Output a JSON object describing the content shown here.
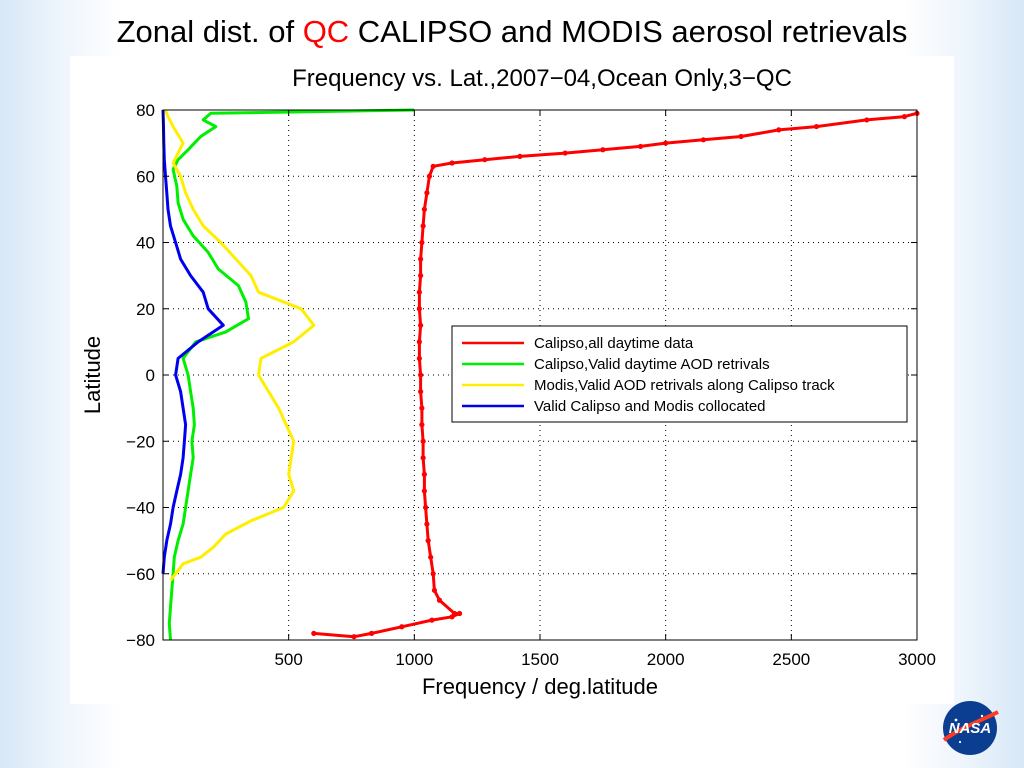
{
  "slide": {
    "title_prefix": "Zonal dist. of ",
    "title_accent": "QC",
    "title_suffix": " CALIPSO and MODIS aerosol retrievals",
    "accent_color": "#ff0000"
  },
  "logo": {
    "name": "nasa-logo",
    "text": "NASA"
  },
  "chart_data": {
    "type": "line",
    "title": "Frequency vs. Lat.,2007−04,Ocean Only,3−QC",
    "xlabel": "Frequency / deg.latitude",
    "ylabel": "Latitude",
    "xlim": [
      0,
      3000
    ],
    "ylim": [
      -80,
      80
    ],
    "xticks": [
      500,
      1000,
      1500,
      2000,
      2500,
      3000
    ],
    "yticks": [
      -80,
      -60,
      -40,
      -20,
      0,
      20,
      40,
      60,
      80
    ],
    "ytick_labels": [
      "−80",
      "−60",
      "−40",
      "−20",
      "0",
      "20",
      "40",
      "60",
      "80"
    ],
    "grid": true,
    "legend_position": "center-right",
    "series": [
      {
        "name": "Calipso,all daytime data",
        "color": "#ff0000",
        "markers": true,
        "points": [
          [
            600,
            -78
          ],
          [
            760,
            -79
          ],
          [
            830,
            -78
          ],
          [
            950,
            -76
          ],
          [
            1070,
            -74
          ],
          [
            1150,
            -73
          ],
          [
            1180,
            -72
          ],
          [
            1160,
            -72
          ],
          [
            1100,
            -68
          ],
          [
            1080,
            -65
          ],
          [
            1075,
            -60
          ],
          [
            1065,
            -55
          ],
          [
            1055,
            -50
          ],
          [
            1050,
            -45
          ],
          [
            1045,
            -40
          ],
          [
            1040,
            -35
          ],
          [
            1040,
            -30
          ],
          [
            1035,
            -25
          ],
          [
            1035,
            -20
          ],
          [
            1030,
            -15
          ],
          [
            1030,
            -10
          ],
          [
            1025,
            -5
          ],
          [
            1025,
            0
          ],
          [
            1020,
            5
          ],
          [
            1020,
            10
          ],
          [
            1025,
            15
          ],
          [
            1020,
            20
          ],
          [
            1020,
            25
          ],
          [
            1025,
            30
          ],
          [
            1025,
            35
          ],
          [
            1030,
            40
          ],
          [
            1035,
            45
          ],
          [
            1040,
            50
          ],
          [
            1050,
            55
          ],
          [
            1060,
            60
          ],
          [
            1075,
            63
          ],
          [
            1150,
            64
          ],
          [
            1280,
            65
          ],
          [
            1420,
            66
          ],
          [
            1600,
            67
          ],
          [
            1750,
            68
          ],
          [
            1900,
            69
          ],
          [
            2000,
            70
          ],
          [
            2150,
            71
          ],
          [
            2300,
            72
          ],
          [
            2450,
            74
          ],
          [
            2600,
            75
          ],
          [
            2800,
            77
          ],
          [
            2950,
            78
          ],
          [
            3000,
            79
          ]
        ]
      },
      {
        "name": "Calipso,Valid daytime AOD retrivals",
        "color": "#00ee00",
        "markers": false,
        "points": [
          [
            30,
            -80
          ],
          [
            25,
            -75
          ],
          [
            30,
            -70
          ],
          [
            35,
            -65
          ],
          [
            40,
            -60
          ],
          [
            45,
            -55
          ],
          [
            60,
            -50
          ],
          [
            80,
            -45
          ],
          [
            90,
            -40
          ],
          [
            100,
            -35
          ],
          [
            110,
            -30
          ],
          [
            120,
            -25
          ],
          [
            115,
            -20
          ],
          [
            125,
            -15
          ],
          [
            120,
            -10
          ],
          [
            110,
            -5
          ],
          [
            100,
            0
          ],
          [
            80,
            5
          ],
          [
            130,
            10
          ],
          [
            250,
            13
          ],
          [
            340,
            17
          ],
          [
            330,
            22
          ],
          [
            300,
            27
          ],
          [
            220,
            32
          ],
          [
            180,
            37
          ],
          [
            120,
            42
          ],
          [
            80,
            47
          ],
          [
            60,
            52
          ],
          [
            55,
            57
          ],
          [
            40,
            62
          ],
          [
            60,
            65
          ],
          [
            100,
            68
          ],
          [
            150,
            72
          ],
          [
            210,
            75
          ],
          [
            160,
            77
          ],
          [
            190,
            79
          ],
          [
            1000,
            80
          ]
        ]
      },
      {
        "name": "Modis,Valid AOD retrivals along Calipso track",
        "color": "#ffee00",
        "markers": false,
        "points": [
          [
            30,
            -62
          ],
          [
            80,
            -57
          ],
          [
            150,
            -55
          ],
          [
            200,
            -52
          ],
          [
            250,
            -48
          ],
          [
            350,
            -44
          ],
          [
            480,
            -40
          ],
          [
            520,
            -35
          ],
          [
            500,
            -30
          ],
          [
            510,
            -25
          ],
          [
            520,
            -20
          ],
          [
            490,
            -15
          ],
          [
            460,
            -10
          ],
          [
            420,
            -5
          ],
          [
            380,
            0
          ],
          [
            390,
            5
          ],
          [
            520,
            10
          ],
          [
            600,
            15
          ],
          [
            550,
            20
          ],
          [
            380,
            25
          ],
          [
            350,
            30
          ],
          [
            290,
            35
          ],
          [
            230,
            40
          ],
          [
            160,
            45
          ],
          [
            120,
            50
          ],
          [
            90,
            55
          ],
          [
            70,
            60
          ],
          [
            40,
            64
          ],
          [
            60,
            67
          ],
          [
            80,
            70
          ],
          [
            40,
            75
          ],
          [
            20,
            78
          ],
          [
            10,
            80
          ]
        ]
      },
      {
        "name": "Valid Calipso and Modis collocated",
        "color": "#0000ee",
        "markers": false,
        "points": [
          [
            0,
            -60
          ],
          [
            5,
            -55
          ],
          [
            15,
            -50
          ],
          [
            30,
            -45
          ],
          [
            40,
            -40
          ],
          [
            55,
            -35
          ],
          [
            70,
            -30
          ],
          [
            80,
            -25
          ],
          [
            85,
            -20
          ],
          [
            90,
            -15
          ],
          [
            80,
            -10
          ],
          [
            70,
            -5
          ],
          [
            50,
            0
          ],
          [
            60,
            5
          ],
          [
            140,
            10
          ],
          [
            240,
            15
          ],
          [
            180,
            20
          ],
          [
            160,
            25
          ],
          [
            110,
            30
          ],
          [
            70,
            35
          ],
          [
            50,
            40
          ],
          [
            30,
            45
          ],
          [
            20,
            50
          ],
          [
            15,
            55
          ],
          [
            10,
            60
          ],
          [
            5,
            65
          ],
          [
            3,
            70
          ],
          [
            2,
            75
          ],
          [
            0,
            80
          ]
        ]
      }
    ]
  }
}
